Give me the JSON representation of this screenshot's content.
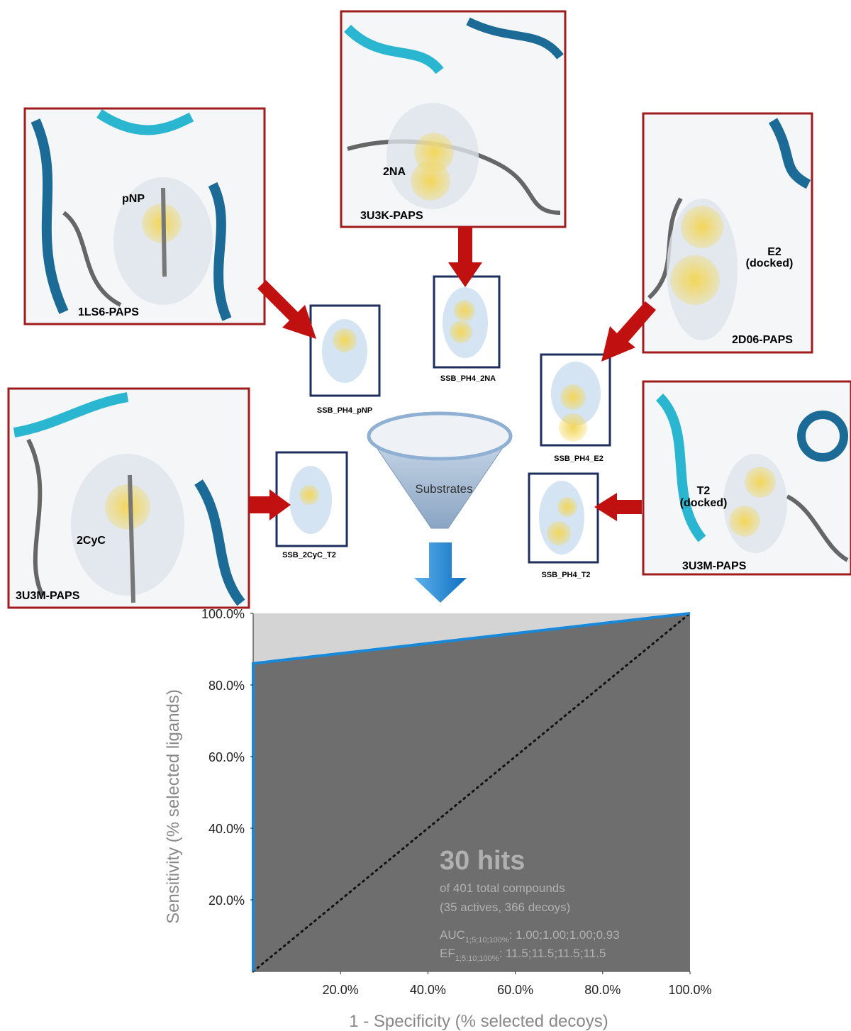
{
  "panels": [
    {
      "ligand": [
        "pNP"
      ],
      "structure": "1LS6-PAPS"
    },
    {
      "ligand": [
        "2NA"
      ],
      "structure": "3U3K-PAPS"
    },
    {
      "ligand": [
        "E2",
        "(docked)"
      ],
      "structure": "2D06-PAPS"
    },
    {
      "ligand": [
        "2CyC"
      ],
      "structure": "3U3M-PAPS"
    },
    {
      "ligand": [
        "T2",
        "(docked)"
      ],
      "structure": "3U3M-PAPS"
    }
  ],
  "pharmacophores": [
    "SSB_PH4_pNP",
    "SSB_PH4_2NA",
    "SSB_PH4_E2",
    "SSB_2CyC_T2",
    "SSB_PH4_T2"
  ],
  "funnel_label": "Substrates",
  "chart_data": {
    "type": "line",
    "x_label": "1 - Specificity (% selected decoys)",
    "y_label": "Sensitivity (% selected ligands)",
    "xlim": [
      0,
      100
    ],
    "ylim": [
      0,
      100
    ],
    "xticks": [
      {
        "value": 20,
        "label": "20.0%"
      },
      {
        "value": 40,
        "label": "40.0%"
      },
      {
        "value": 60,
        "label": "60.0%"
      },
      {
        "value": 80,
        "label": "80.0%"
      },
      {
        "value": 100,
        "label": "100.0%"
      }
    ],
    "yticks": [
      {
        "value": 20,
        "label": "20.0%"
      },
      {
        "value": 40,
        "label": "40.0%"
      },
      {
        "value": 60,
        "label": "60.0%"
      },
      {
        "value": 80,
        "label": "80.0%"
      },
      {
        "value": 100,
        "label": "100.0%"
      }
    ],
    "series": [
      {
        "color": "#1a88d8",
        "x": [
          0,
          0,
          100
        ],
        "values": [
          0,
          86,
          100
        ]
      }
    ],
    "annotations": {
      "hits": "30 hits",
      "total": "of 401 total compounds",
      "split": "(35 actives, 366 decoys)",
      "auc_name": "AUC",
      "auc_sub": "1;5;10;100%",
      "auc_values": ": 1.00;1.00;1.00;0.93",
      "ef_name": "EF",
      "ef_sub": "1;5;10;100%",
      "ef_values": ": 11.5;11.5;11.5;11.5"
    }
  }
}
